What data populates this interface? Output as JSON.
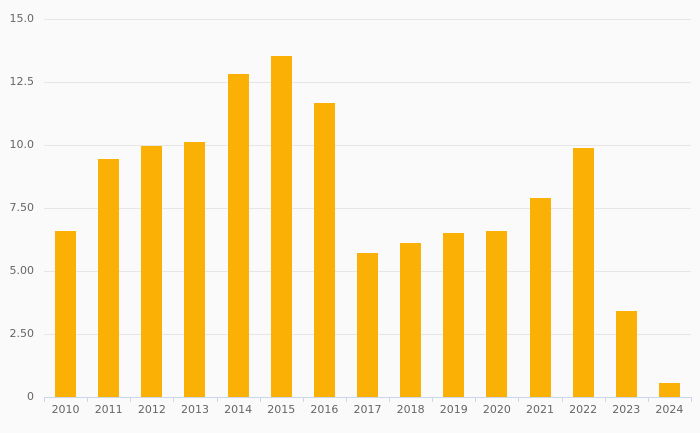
{
  "chart_data": {
    "type": "bar",
    "title": "",
    "xlabel": "",
    "ylabel": "",
    "categories": [
      "2010",
      "2011",
      "2012",
      "2013",
      "2014",
      "2015",
      "2016",
      "2017",
      "2018",
      "2019",
      "2020",
      "2021",
      "2022",
      "2023",
      "2024"
    ],
    "values": [
      6.6,
      9.45,
      9.95,
      10.1,
      12.8,
      13.55,
      11.65,
      5.7,
      6.1,
      6.5,
      6.6,
      7.9,
      9.9,
      3.4,
      0.55
    ],
    "ylim": [
      0,
      15
    ],
    "yticks": [
      {
        "value": 0,
        "label": "0"
      },
      {
        "value": 2.5,
        "label": "2.50"
      },
      {
        "value": 5,
        "label": "5.00"
      },
      {
        "value": 7.5,
        "label": "7.50"
      },
      {
        "value": 10,
        "label": "10.0"
      },
      {
        "value": 12.5,
        "label": "12.5"
      },
      {
        "value": 15,
        "label": "15.0"
      }
    ],
    "grid": true,
    "legend": false,
    "colors": {
      "bar": "#FAB005",
      "background": "#FAFAFA",
      "gridline": "#E6E6E6",
      "axis_line": "#CCD6EB",
      "tick": "#CCD6EB",
      "label_text": "#666666"
    }
  }
}
